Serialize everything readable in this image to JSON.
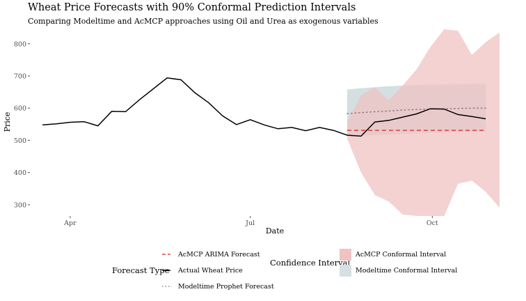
{
  "title": "Wheat Price Forecasts with 90% Conformal Prediction Intervals",
  "subtitle": "Comparing Modeltime and AcMCP approaches using Oil and Urea as exogenous variables",
  "chart_data": {
    "type": "line",
    "title": "Wheat Price Forecasts with 90% Conformal Prediction Intervals",
    "subtitle": "Comparing Modeltime and AcMCP approaches using Oil and Urea as exogenous variables",
    "xlabel": "Date",
    "ylabel": "Price",
    "x_scale": "weekly dates",
    "ylim": [
      265,
      845
    ],
    "y_ticks": [
      300,
      400,
      500,
      600,
      700,
      800
    ],
    "x_ticks": [
      {
        "date": "2022-04-01",
        "label": "Apr"
      },
      {
        "date": "2022-07-01",
        "label": "Jul"
      },
      {
        "date": "2022-10-01",
        "label": "Oct"
      }
    ],
    "grid": false,
    "legend_position": "bottom",
    "series": [
      {
        "name": "Actual Wheat Price",
        "legend_group": "Forecast Type",
        "style": "solid",
        "color": "#000000",
        "points": [
          [
            "2022-03-18",
            548
          ],
          [
            "2022-03-25",
            551
          ],
          [
            "2022-04-01",
            556
          ],
          [
            "2022-04-08",
            558
          ],
          [
            "2022-04-15",
            545
          ],
          [
            "2022-04-22",
            590
          ],
          [
            "2022-04-29",
            589
          ],
          [
            "2022-05-06",
            626
          ],
          [
            "2022-05-13",
            660
          ],
          [
            "2022-05-20",
            694
          ],
          [
            "2022-05-27",
            688
          ],
          [
            "2022-06-03",
            648
          ],
          [
            "2022-06-10",
            617
          ],
          [
            "2022-06-17",
            576
          ],
          [
            "2022-06-24",
            549
          ],
          [
            "2022-07-01",
            564
          ],
          [
            "2022-07-08",
            548
          ],
          [
            "2022-07-15",
            536
          ],
          [
            "2022-07-22",
            540
          ],
          [
            "2022-07-29",
            530
          ],
          [
            "2022-08-05",
            540
          ],
          [
            "2022-08-12",
            531
          ],
          [
            "2022-08-19",
            516
          ],
          [
            "2022-08-26",
            513
          ],
          [
            "2022-09-02",
            557
          ],
          [
            "2022-09-09",
            562
          ],
          [
            "2022-09-16",
            572
          ],
          [
            "2022-09-23",
            582
          ],
          [
            "2022-09-30",
            598
          ],
          [
            "2022-10-07",
            597
          ],
          [
            "2022-10-14",
            580
          ],
          [
            "2022-10-21",
            574
          ],
          [
            "2022-10-28",
            567
          ]
        ]
      },
      {
        "name": "AcMCP ARIMA Forecast",
        "legend_group": "Forecast Type",
        "style": "dashed",
        "color": "#d7484a",
        "points": [
          [
            "2022-08-19",
            531
          ],
          [
            "2022-08-26",
            531
          ],
          [
            "2022-09-02",
            531
          ],
          [
            "2022-09-09",
            531
          ],
          [
            "2022-09-16",
            531
          ],
          [
            "2022-09-23",
            531
          ],
          [
            "2022-09-30",
            531
          ],
          [
            "2022-10-07",
            531
          ],
          [
            "2022-10-14",
            531
          ],
          [
            "2022-10-21",
            531
          ],
          [
            "2022-10-28",
            531
          ]
        ]
      },
      {
        "name": "Modeltime Prophet Forecast",
        "legend_group": "Forecast Type",
        "style": "dotted",
        "color": "#9a8088",
        "points": [
          [
            "2022-08-19",
            583
          ],
          [
            "2022-08-26",
            586
          ],
          [
            "2022-09-02",
            589
          ],
          [
            "2022-09-09",
            591
          ],
          [
            "2022-09-16",
            594
          ],
          [
            "2022-09-23",
            596
          ],
          [
            "2022-09-30",
            597
          ],
          [
            "2022-10-07",
            598
          ],
          [
            "2022-10-14",
            599
          ],
          [
            "2022-10-21",
            600
          ],
          [
            "2022-10-28",
            600
          ]
        ]
      }
    ],
    "intervals": [
      {
        "name": "Modeltime Conformal Interval",
        "legend_group": "Confidence Interval",
        "color": "#c6d4d8",
        "points": [
          [
            "2022-08-19",
            513,
            658
          ],
          [
            "2022-08-26",
            514,
            662
          ],
          [
            "2022-09-02",
            516,
            665
          ],
          [
            "2022-09-09",
            518,
            668
          ],
          [
            "2022-09-16",
            520,
            670
          ],
          [
            "2022-09-23",
            522,
            672
          ],
          [
            "2022-09-30",
            523,
            673
          ],
          [
            "2022-10-07",
            524,
            674
          ],
          [
            "2022-10-14",
            525,
            675
          ],
          [
            "2022-10-21",
            526,
            676
          ],
          [
            "2022-10-28",
            527,
            676
          ]
        ]
      },
      {
        "name": "AcMCP Conformal Interval",
        "legend_group": "Confidence Interval",
        "color": "#f0c3c3",
        "points": [
          [
            "2022-08-19",
            505,
            558
          ],
          [
            "2022-08-26",
            400,
            640
          ],
          [
            "2022-09-02",
            330,
            665
          ],
          [
            "2022-09-09",
            310,
            625
          ],
          [
            "2022-09-16",
            270,
            670
          ],
          [
            "2022-09-23",
            265,
            720
          ],
          [
            "2022-09-30",
            265,
            790
          ],
          [
            "2022-10-07",
            265,
            845
          ],
          [
            "2022-10-14",
            365,
            840
          ],
          [
            "2022-10-21",
            375,
            765
          ],
          [
            "2022-10-28",
            340,
            805
          ],
          [
            "2022-11-04",
            290,
            835
          ]
        ]
      }
    ]
  },
  "legend": {
    "forecast_type_title": "Forecast Type",
    "forecast_items": [
      "AcMCP ARIMA Forecast",
      "Actual Wheat Price",
      "Modeltime Prophet Forecast"
    ],
    "interval_title": "Confidence Interval",
    "interval_items": [
      "AcMCP Conformal Interval",
      "Modeltime Conformal Interval"
    ]
  }
}
